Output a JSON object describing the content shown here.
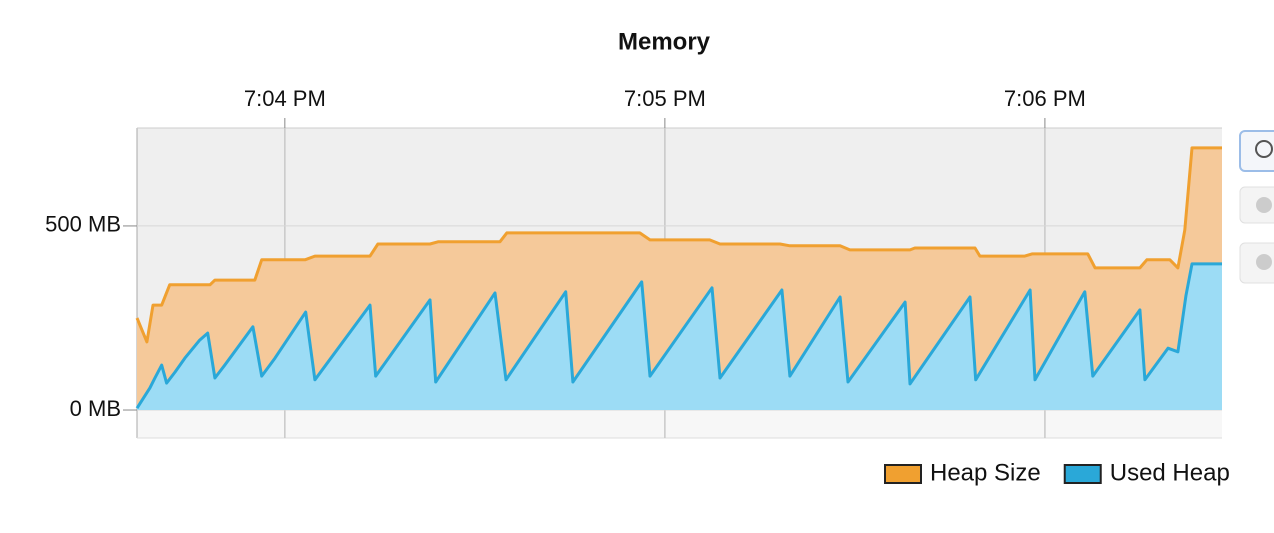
{
  "chart_data": {
    "type": "area",
    "title": "Memory",
    "xlim": [
      3.611,
      6.466
    ],
    "xticks": [
      {
        "value": 4,
        "label": "7:04 PM"
      },
      {
        "value": 5,
        "label": "7:05 PM"
      },
      {
        "value": 6,
        "label": "7:06 PM"
      }
    ],
    "ylim": [
      -76,
      766
    ],
    "yticks": [
      {
        "value": 0,
        "label": "0 MB"
      },
      {
        "value": 500,
        "label": "500 MB"
      }
    ],
    "grid": true,
    "legend": "bottom-right",
    "series": [
      {
        "name": "Heap Size",
        "color": "#f0a030",
        "fill": "#f5c99a",
        "x": [
          3.611,
          3.637,
          3.653,
          3.676,
          3.697,
          3.803,
          3.816,
          3.921,
          3.939,
          4.053,
          4.079,
          4.224,
          4.245,
          4.382,
          4.403,
          4.566,
          4.584,
          4.934,
          4.961,
          5.118,
          5.145,
          5.303,
          5.329,
          5.461,
          5.487,
          5.645,
          5.658,
          5.816,
          5.829,
          5.947,
          5.966,
          6.113,
          6.132,
          6.25,
          6.268,
          6.329,
          6.35,
          6.368,
          6.387,
          6.466
        ],
        "values": [
          250,
          185,
          285,
          285,
          340,
          340,
          353,
          353,
          408,
          408,
          418,
          418,
          451,
          451,
          457,
          457,
          481,
          481,
          462,
          462,
          451,
          451,
          446,
          446,
          435,
          435,
          440,
          440,
          418,
          418,
          424,
          424,
          386,
          386,
          408,
          408,
          386,
          489,
          712,
          712
        ]
      },
      {
        "name": "Used Heap",
        "color": "#2aa8d8",
        "fill": "#9cdcf5",
        "x": [
          3.611,
          3.645,
          3.658,
          3.676,
          3.689,
          3.711,
          3.737,
          3.776,
          3.797,
          3.816,
          3.842,
          3.916,
          3.939,
          3.974,
          4.055,
          4.079,
          4.224,
          4.239,
          4.382,
          4.397,
          4.553,
          4.582,
          4.739,
          4.758,
          4.939,
          4.961,
          5.124,
          5.145,
          5.308,
          5.329,
          5.461,
          5.482,
          5.632,
          5.645,
          5.803,
          5.818,
          5.961,
          5.974,
          6.105,
          6.126,
          6.25,
          6.263,
          6.324,
          6.35,
          6.371,
          6.387,
          6.466
        ],
        "values": [
          5,
          60,
          87,
          122,
          73,
          103,
          141,
          190,
          209,
          87,
          122,
          226,
          92,
          141,
          266,
          82,
          285,
          92,
          299,
          76,
          318,
          82,
          321,
          76,
          348,
          92,
          332,
          87,
          326,
          92,
          307,
          76,
          293,
          71,
          307,
          82,
          326,
          82,
          321,
          92,
          272,
          82,
          168,
          158,
          310,
          397,
          397
        ]
      }
    ]
  }
}
